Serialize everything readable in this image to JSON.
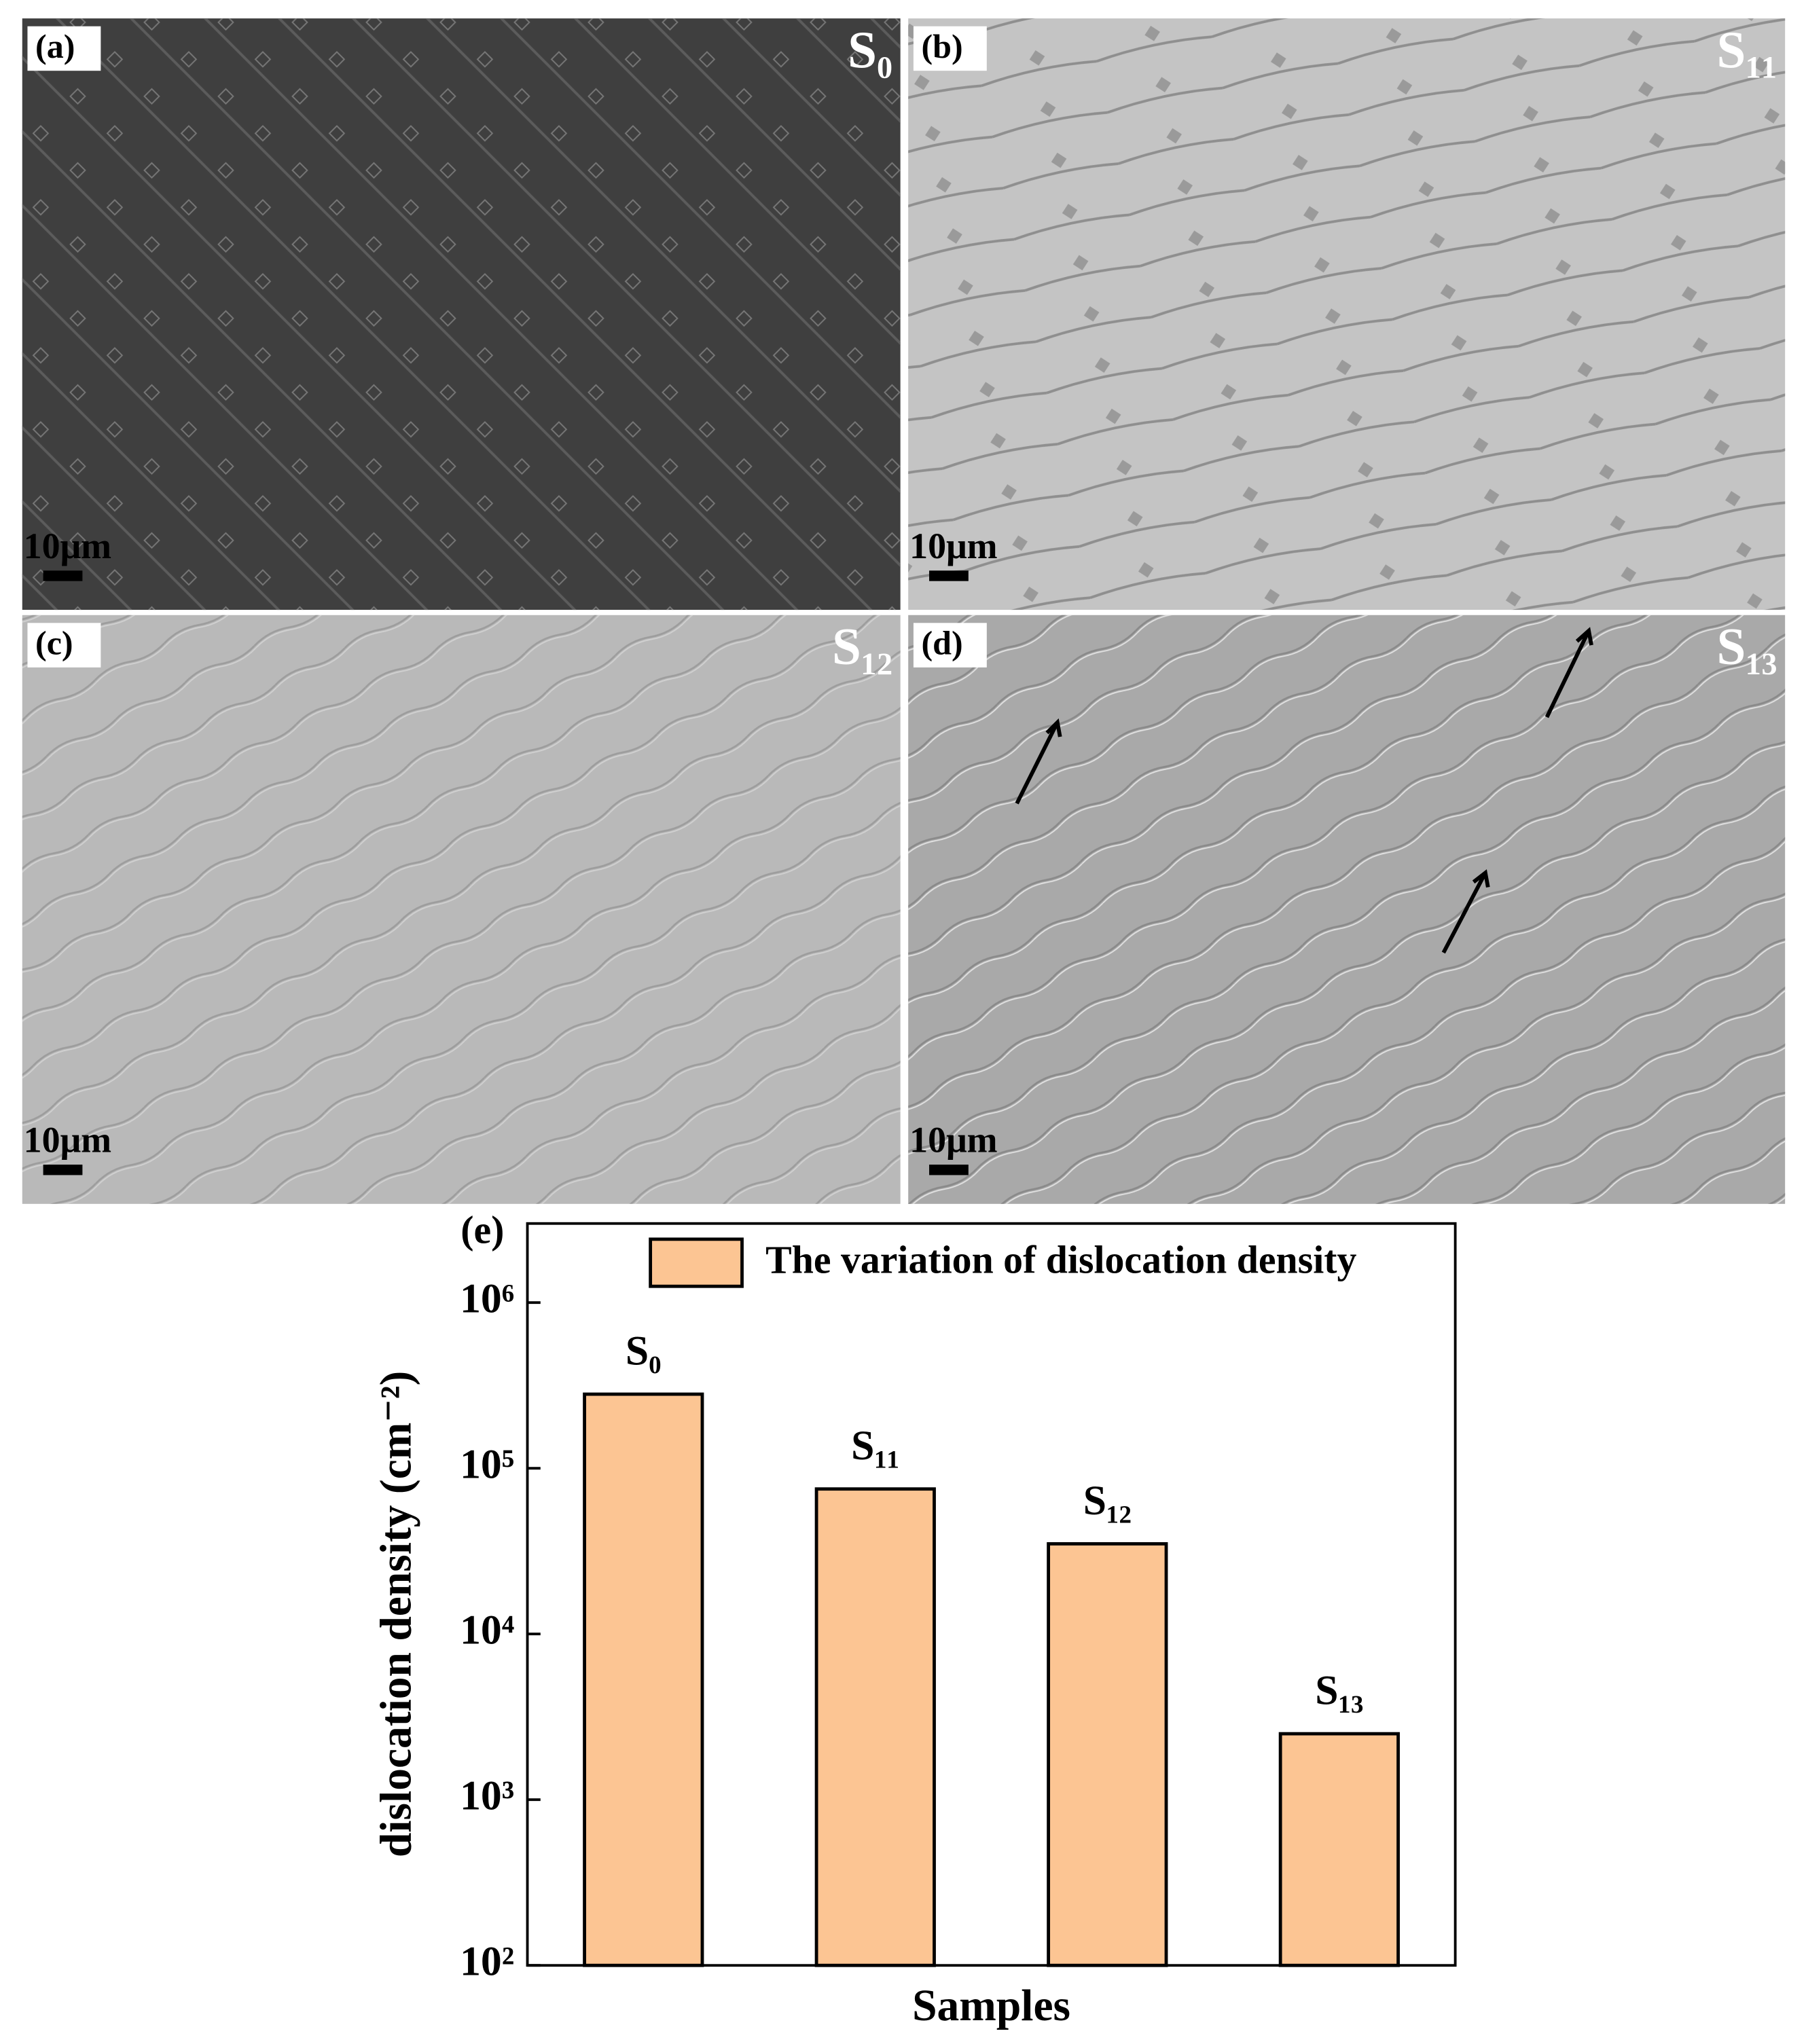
{
  "panels": [
    {
      "label": "(a)",
      "sample": "S₀",
      "scale_bar": "10μm"
    },
    {
      "label": "(b)",
      "sample": "S₁₁",
      "scale_bar": "10μm"
    },
    {
      "label": "(c)",
      "sample": "S₁₂",
      "scale_bar": "10μm"
    },
    {
      "label": "(d)",
      "sample": "S₁₃",
      "scale_bar": "10μm"
    }
  ],
  "chart_data": {
    "type": "bar",
    "panel_label": "(e)",
    "x_label": "Samples",
    "y_label": "dislocation density (cm⁻²)",
    "categories": [
      "S₀",
      "S₁₁",
      "S₁₂",
      "S₁₃"
    ],
    "series": [
      {
        "name": "The variation of dislocation density",
        "color": "#fcc593",
        "values": [
          280000,
          75000,
          35000,
          2500
        ]
      }
    ],
    "log_scale": true,
    "ylim": [
      100,
      3000000
    ],
    "yticks": [
      {
        "value": 100,
        "label": "10²"
      },
      {
        "value": 1000,
        "label": "10³"
      },
      {
        "value": 10000,
        "label": "10⁴"
      },
      {
        "value": 100000,
        "label": "10⁵"
      },
      {
        "value": 1000000,
        "label": "10⁶"
      }
    ],
    "legend": "top-right"
  }
}
